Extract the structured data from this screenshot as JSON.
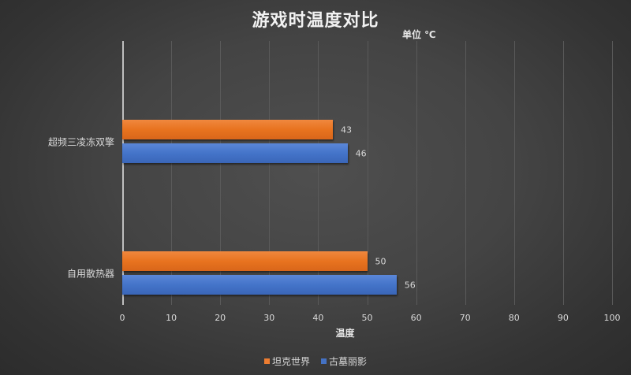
{
  "chart_data": {
    "type": "bar",
    "orientation": "horizontal",
    "title": "游戏时温度对比",
    "subtitle": "单位 ℃",
    "xlabel": "温度",
    "ylabel": "",
    "categories": [
      "超频三凌冻双擎",
      "自用散热器"
    ],
    "series": [
      {
        "name": "坦克世界",
        "color": "#ed7d31",
        "values": [
          43,
          50
        ]
      },
      {
        "name": "古墓丽影",
        "color": "#4472c4",
        "values": [
          46,
          56
        ]
      }
    ],
    "xlim": [
      0,
      100
    ],
    "xticks": [
      "0",
      "10",
      "20",
      "30",
      "40",
      "50",
      "60",
      "70",
      "80",
      "90",
      "100"
    ],
    "grid": true,
    "legend_position": "bottom",
    "data_labels": true
  }
}
